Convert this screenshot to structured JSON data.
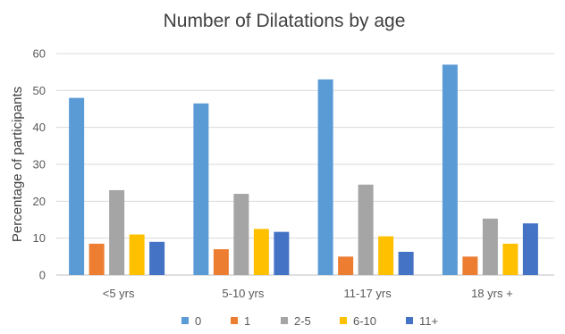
{
  "chart_data": {
    "type": "bar",
    "title": "Number of Dilatations by age",
    "xlabel": "",
    "ylabel": "Percentage of participants",
    "categories": [
      "<5 yrs",
      "5-10 yrs",
      "11-17 yrs",
      "18 yrs +"
    ],
    "ylim": [
      0,
      60
    ],
    "yticks": [
      0,
      10,
      20,
      30,
      40,
      50,
      60
    ],
    "grid": true,
    "legend_position": "bottom",
    "series": [
      {
        "name": "0",
        "color": "#5b9bd5",
        "values": [
          48,
          46.5,
          53,
          57
        ]
      },
      {
        "name": "1",
        "color": "#ed7d31",
        "values": [
          8.5,
          7,
          5,
          5
        ]
      },
      {
        "name": "2-5",
        "color": "#a5a5a5",
        "values": [
          23,
          22,
          24.5,
          15.3
        ]
      },
      {
        "name": "6-10",
        "color": "#ffc000",
        "values": [
          11,
          12.5,
          10.5,
          8.5
        ]
      },
      {
        "name": "11+",
        "color": "#4472c4",
        "values": [
          9,
          11.7,
          6.3,
          14
        ]
      }
    ]
  }
}
